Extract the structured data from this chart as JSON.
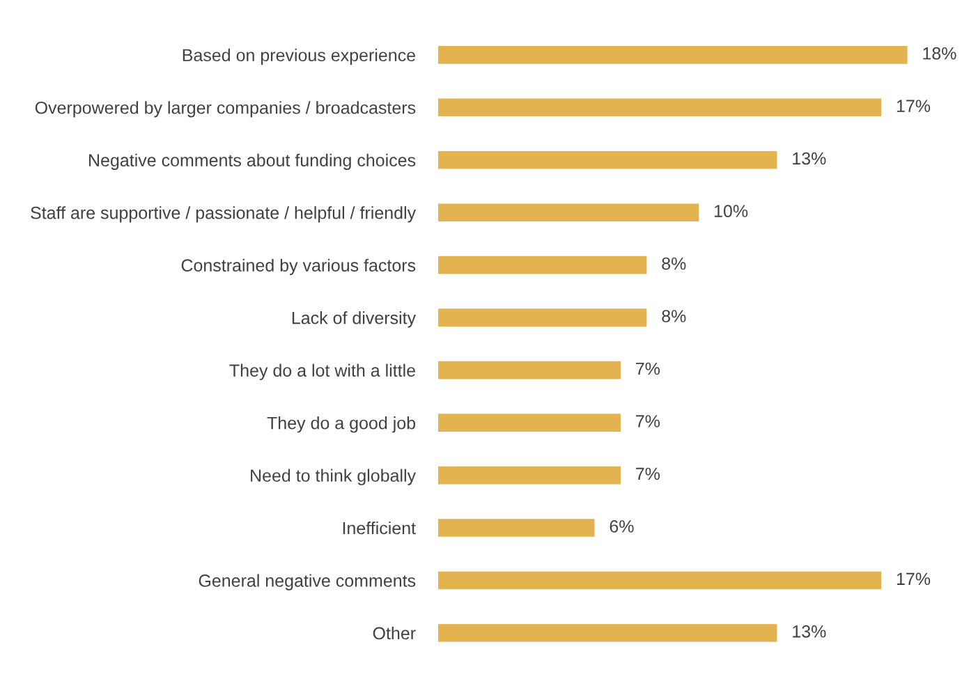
{
  "chart_data": {
    "type": "bar",
    "orientation": "horizontal",
    "categories": [
      "Based on previous experience",
      "Overpowered by larger companies / broadcasters",
      "Negative comments about funding choices",
      "Staff are supportive / passionate / helpful / friendly",
      "Constrained by various factors",
      "Lack of diversity",
      "They do a lot with a little",
      "They do a good job",
      "Need to think globally",
      "Inefficient",
      "General negative comments",
      "Other"
    ],
    "values": [
      18,
      17,
      13,
      10,
      8,
      8,
      7,
      7,
      7,
      6,
      17,
      13
    ],
    "value_labels": [
      "18%",
      "17%",
      "13%",
      "10%",
      "8%",
      "8%",
      "7%",
      "7%",
      "7%",
      "6%",
      "17%",
      "13%"
    ],
    "color": "#e3b34f",
    "grid": false,
    "legend": false
  }
}
